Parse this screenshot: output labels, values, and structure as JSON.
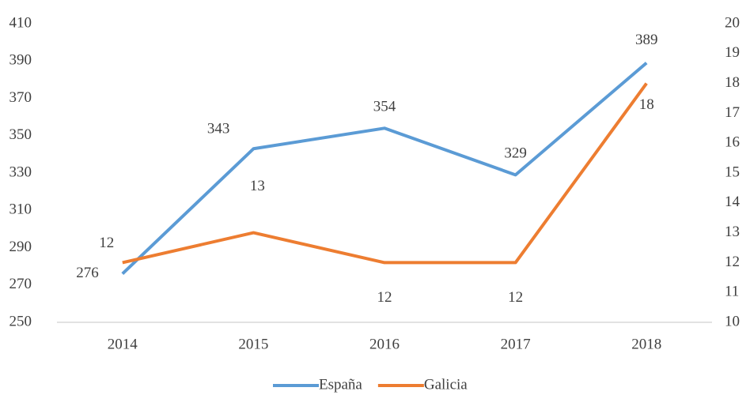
{
  "chart_data": {
    "type": "line",
    "categories": [
      "2014",
      "2015",
      "2016",
      "2017",
      "2018"
    ],
    "series": [
      {
        "name": "España",
        "color": "#5b9bd5",
        "values": [
          276,
          343,
          354,
          329,
          389
        ]
      },
      {
        "name": "Galicia",
        "color": "#ed7d31",
        "values": [
          12,
          13,
          12,
          12,
          18
        ],
        "axis": "y2"
      }
    ],
    "ylim": [
      250,
      410
    ],
    "yticks": [
      250,
      270,
      290,
      310,
      330,
      350,
      370,
      390,
      410
    ],
    "y2lim": [
      10,
      20
    ],
    "y2ticks": [
      10,
      11,
      12,
      13,
      14,
      15,
      16,
      17,
      18,
      19,
      20
    ],
    "grid": false,
    "legend": "bottom"
  }
}
